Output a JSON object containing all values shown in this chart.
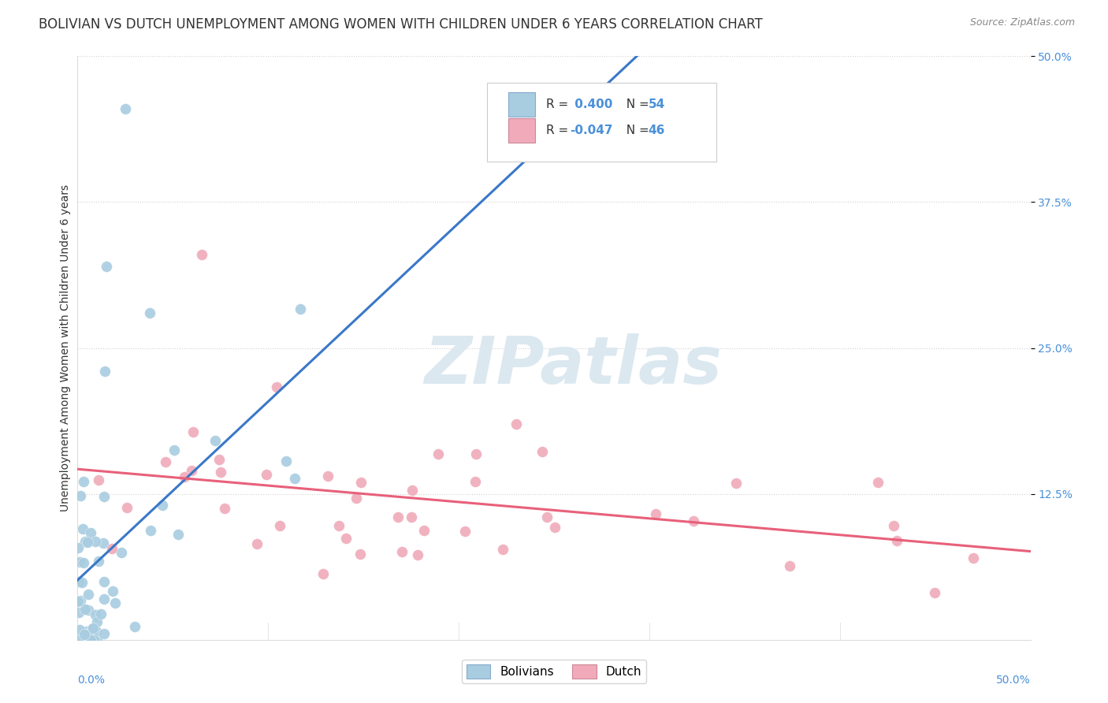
{
  "title": "BOLIVIAN VS DUTCH UNEMPLOYMENT AMONG WOMEN WITH CHILDREN UNDER 6 YEARS CORRELATION CHART",
  "source": "Source: ZipAtlas.com",
  "ylabel": "Unemployment Among Women with Children Under 6 years",
  "xlim": [
    0,
    0.5
  ],
  "ylim": [
    0,
    0.5
  ],
  "bolivian_color": "#a8cce0",
  "dutch_color": "#f0aaba",
  "bolivian_line_color": "#3a78c9",
  "dutch_line_color": "#e8607a",
  "dashed_line_color": "#a8cce0",
  "background_color": "#ffffff",
  "watermark": "ZIPatlas",
  "grid_color": "#cccccc",
  "title_fontsize": 12,
  "axis_label_fontsize": 10,
  "tick_fontsize": 10,
  "legend_fontsize": 11,
  "watermark_color": "#dce8f0",
  "watermark_fontsize": 60,
  "right_tick_color": "#4a90d9",
  "bolivian_seed": 42,
  "dutch_seed": 99
}
